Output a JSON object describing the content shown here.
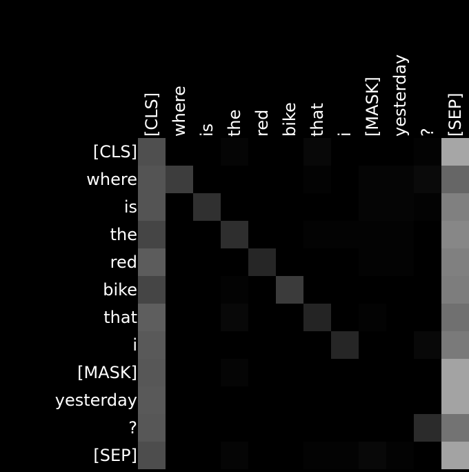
{
  "chart_data": {
    "type": "heatmap",
    "title": "",
    "xlabel": "",
    "ylabel": "",
    "colormap": "grayscale",
    "background_color": "#000000",
    "label_color": "#ffffff",
    "value_range": [
      0,
      1
    ],
    "x_labels": [
      "[CLS]",
      "where",
      "is",
      "the",
      "red",
      "bike",
      "that",
      "i",
      "[MASK]",
      "yesterday",
      "?",
      "[SEP]"
    ],
    "y_labels": [
      "[CLS]",
      "where",
      "is",
      "the",
      "red",
      "bike",
      "that",
      "i",
      "[MASK]",
      "yesterday",
      "?",
      "[SEP]"
    ],
    "values": [
      [
        0.31,
        0.0,
        0.0,
        0.02,
        0.0,
        0.0,
        0.03,
        0.0,
        0.0,
        0.0,
        0.01,
        0.65
      ],
      [
        0.33,
        0.24,
        0.0,
        0.0,
        0.0,
        0.0,
        0.01,
        0.0,
        0.02,
        0.02,
        0.04,
        0.4
      ],
      [
        0.33,
        0.0,
        0.19,
        0.0,
        0.0,
        0.0,
        0.0,
        0.0,
        0.02,
        0.02,
        0.01,
        0.5
      ],
      [
        0.27,
        0.0,
        0.0,
        0.18,
        0.0,
        0.0,
        0.01,
        0.01,
        0.01,
        0.01,
        0.0,
        0.53
      ],
      [
        0.36,
        0.0,
        0.0,
        0.0,
        0.15,
        0.0,
        0.0,
        0.0,
        0.01,
        0.01,
        0.0,
        0.5
      ],
      [
        0.27,
        0.0,
        0.0,
        0.01,
        0.0,
        0.23,
        0.0,
        0.0,
        0.0,
        0.0,
        0.0,
        0.49
      ],
      [
        0.37,
        0.0,
        0.0,
        0.03,
        0.0,
        0.0,
        0.14,
        0.0,
        0.01,
        0.0,
        0.0,
        0.44
      ],
      [
        0.35,
        0.0,
        0.0,
        0.0,
        0.0,
        0.0,
        0.0,
        0.15,
        0.0,
        0.0,
        0.03,
        0.48
      ],
      [
        0.34,
        0.0,
        0.0,
        0.02,
        0.0,
        0.0,
        0.0,
        0.0,
        0.0,
        0.0,
        0.0,
        0.64
      ],
      [
        0.35,
        0.0,
        0.0,
        0.0,
        0.0,
        0.0,
        0.0,
        0.0,
        0.0,
        0.0,
        0.0,
        0.64
      ],
      [
        0.34,
        0.0,
        0.0,
        0.0,
        0.0,
        0.0,
        0.0,
        0.0,
        0.0,
        0.0,
        0.17,
        0.45
      ],
      [
        0.3,
        0.0,
        0.0,
        0.02,
        0.0,
        0.0,
        0.01,
        0.01,
        0.03,
        0.01,
        0.0,
        0.64
      ]
    ]
  }
}
